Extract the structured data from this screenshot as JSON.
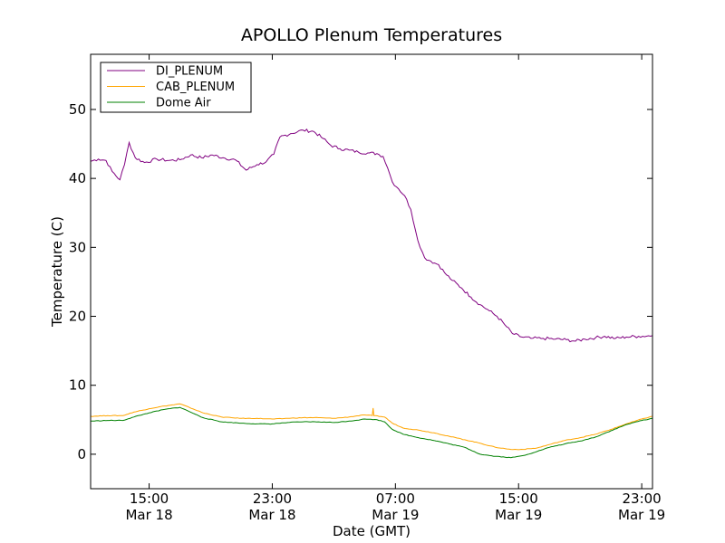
{
  "chart_data": {
    "type": "line",
    "title": "APOLLO Plenum Temperatures",
    "xlabel": "Date (GMT)",
    "ylabel": "Temperature (C)",
    "x_unit": "hours since Mar 18 00:00 GMT",
    "xlim": [
      11.2,
      47.7
    ],
    "ylim": [
      -5,
      58
    ],
    "y_ticks": [
      0,
      10,
      20,
      30,
      40,
      50
    ],
    "x_ticks": [
      {
        "x": 15,
        "time": "15:00",
        "date": "Mar 18"
      },
      {
        "x": 23,
        "time": "23:00",
        "date": "Mar 18"
      },
      {
        "x": 31,
        "time": "07:00",
        "date": "Mar 19"
      },
      {
        "x": 39,
        "time": "15:00",
        "date": "Mar 19"
      },
      {
        "x": 47,
        "time": "23:00",
        "date": "Mar 19"
      }
    ],
    "legend_location": "top-left",
    "series": [
      {
        "name": "DI_PLENUM",
        "color": "#800080",
        "points": [
          [
            11.2,
            42.5
          ],
          [
            11.7,
            42.8
          ],
          [
            12.2,
            42.6
          ],
          [
            12.6,
            41.0
          ],
          [
            13.1,
            39.8
          ],
          [
            13.4,
            42.0
          ],
          [
            13.7,
            45.2
          ],
          [
            14.1,
            43.0
          ],
          [
            14.7,
            42.3
          ],
          [
            15.5,
            42.8
          ],
          [
            16.3,
            42.6
          ],
          [
            17.0,
            42.7
          ],
          [
            17.7,
            43.4
          ],
          [
            18.4,
            43.0
          ],
          [
            19.1,
            43.4
          ],
          [
            19.8,
            43.0
          ],
          [
            20.6,
            42.7
          ],
          [
            21.3,
            41.2
          ],
          [
            22.0,
            42.0
          ],
          [
            22.6,
            42.4
          ],
          [
            23.1,
            43.5
          ],
          [
            23.5,
            46.0
          ],
          [
            24.2,
            46.5
          ],
          [
            25.0,
            47.0
          ],
          [
            25.7,
            46.8
          ],
          [
            26.3,
            45.8
          ],
          [
            26.8,
            44.8
          ],
          [
            27.4,
            44.3
          ],
          [
            28.0,
            44.1
          ],
          [
            28.6,
            43.8
          ],
          [
            29.2,
            43.7
          ],
          [
            29.8,
            43.6
          ],
          [
            30.2,
            43.2
          ],
          [
            30.5,
            41.5
          ],
          [
            30.8,
            39.5
          ],
          [
            31.2,
            38.5
          ],
          [
            31.6,
            37.5
          ],
          [
            32.0,
            35.5
          ],
          [
            32.3,
            32.5
          ],
          [
            32.6,
            30.0
          ],
          [
            32.9,
            28.5
          ],
          [
            33.3,
            28.0
          ],
          [
            33.8,
            27.5
          ],
          [
            34.2,
            26.3
          ],
          [
            34.7,
            25.2
          ],
          [
            35.3,
            24.1
          ],
          [
            35.9,
            22.8
          ],
          [
            36.5,
            21.7
          ],
          [
            37.1,
            20.8
          ],
          [
            37.6,
            20.0
          ],
          [
            38.1,
            18.8
          ],
          [
            38.6,
            17.5
          ],
          [
            39.2,
            17.0
          ],
          [
            39.8,
            16.8
          ],
          [
            40.6,
            16.8
          ],
          [
            41.4,
            16.7
          ],
          [
            42.1,
            16.6
          ],
          [
            42.7,
            16.4
          ],
          [
            43.3,
            16.7
          ],
          [
            44.0,
            16.9
          ],
          [
            44.6,
            17.1
          ],
          [
            45.3,
            16.8
          ],
          [
            46.0,
            17.0
          ],
          [
            46.8,
            17.1
          ],
          [
            47.7,
            17.2
          ]
        ]
      },
      {
        "name": "CAB_PLENUM",
        "color": "#ffa500",
        "points": [
          [
            11.2,
            5.5
          ],
          [
            12.3,
            5.6
          ],
          [
            13.3,
            5.6
          ],
          [
            14.0,
            6.1
          ],
          [
            15.0,
            6.6
          ],
          [
            16.0,
            7.0
          ],
          [
            17.0,
            7.3
          ],
          [
            17.6,
            6.8
          ],
          [
            18.5,
            6.0
          ],
          [
            19.7,
            5.4
          ],
          [
            21.0,
            5.2
          ],
          [
            22.0,
            5.2
          ],
          [
            23.0,
            5.1
          ],
          [
            24.0,
            5.2
          ],
          [
            25.0,
            5.3
          ],
          [
            26.0,
            5.3
          ],
          [
            27.0,
            5.2
          ],
          [
            28.0,
            5.4
          ],
          [
            29.0,
            5.7
          ],
          [
            29.5,
            5.6
          ],
          [
            29.55,
            6.7
          ],
          [
            29.6,
            5.6
          ],
          [
            30.3,
            5.4
          ],
          [
            30.8,
            4.5
          ],
          [
            31.5,
            3.8
          ],
          [
            32.5,
            3.5
          ],
          [
            33.5,
            3.1
          ],
          [
            34.5,
            2.6
          ],
          [
            35.5,
            2.1
          ],
          [
            36.5,
            1.6
          ],
          [
            37.5,
            1.0
          ],
          [
            38.5,
            0.7
          ],
          [
            39.3,
            0.7
          ],
          [
            40.2,
            0.9
          ],
          [
            41.0,
            1.4
          ],
          [
            42.0,
            2.0
          ],
          [
            43.0,
            2.4
          ],
          [
            44.0,
            2.9
          ],
          [
            45.0,
            3.6
          ],
          [
            46.0,
            4.4
          ],
          [
            47.0,
            5.1
          ],
          [
            47.7,
            5.5
          ]
        ]
      },
      {
        "name": "Dome Air",
        "color": "#008000",
        "points": [
          [
            11.2,
            4.8
          ],
          [
            12.3,
            4.9
          ],
          [
            13.3,
            4.9
          ],
          [
            14.0,
            5.4
          ],
          [
            15.0,
            6.0
          ],
          [
            16.0,
            6.5
          ],
          [
            17.0,
            6.8
          ],
          [
            17.6,
            6.2
          ],
          [
            18.5,
            5.3
          ],
          [
            19.7,
            4.7
          ],
          [
            21.0,
            4.5
          ],
          [
            22.0,
            4.4
          ],
          [
            23.0,
            4.4
          ],
          [
            24.0,
            4.6
          ],
          [
            25.0,
            4.7
          ],
          [
            26.0,
            4.7
          ],
          [
            27.0,
            4.6
          ],
          [
            28.0,
            4.8
          ],
          [
            29.0,
            5.1
          ],
          [
            29.8,
            5.0
          ],
          [
            30.3,
            4.7
          ],
          [
            30.8,
            3.6
          ],
          [
            31.5,
            2.9
          ],
          [
            32.5,
            2.4
          ],
          [
            33.5,
            2.0
          ],
          [
            34.5,
            1.5
          ],
          [
            35.5,
            1.0
          ],
          [
            36.5,
            0.0
          ],
          [
            37.5,
            -0.3
          ],
          [
            38.5,
            -0.5
          ],
          [
            39.3,
            -0.2
          ],
          [
            40.2,
            0.4
          ],
          [
            41.0,
            1.0
          ],
          [
            42.0,
            1.5
          ],
          [
            43.0,
            1.9
          ],
          [
            44.0,
            2.5
          ],
          [
            45.0,
            3.4
          ],
          [
            46.0,
            4.3
          ],
          [
            47.0,
            4.9
          ],
          [
            47.7,
            5.2
          ]
        ]
      }
    ]
  }
}
